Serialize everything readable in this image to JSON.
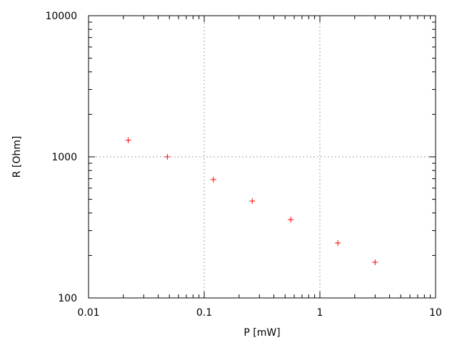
{
  "chart_data": {
    "type": "scatter",
    "title": "",
    "xlabel": "P [mW]",
    "ylabel": "R [Ohm]",
    "xscale": "log",
    "yscale": "log",
    "xlim": [
      0.01,
      10
    ],
    "ylim": [
      100,
      10000
    ],
    "xticks": [
      {
        "value": 0.01,
        "label": "0.01"
      },
      {
        "value": 0.1,
        "label": "0.1"
      },
      {
        "value": 1,
        "label": "1"
      },
      {
        "value": 10,
        "label": "10"
      }
    ],
    "yticks": [
      {
        "value": 100,
        "label": "100"
      },
      {
        "value": 1000,
        "label": "1000"
      },
      {
        "value": 10000,
        "label": "10000"
      }
    ],
    "grid": true,
    "marker": "plus",
    "color": "#ff0000",
    "points": [
      {
        "x": 0.022,
        "y": 1310
      },
      {
        "x": 0.048,
        "y": 1000
      },
      {
        "x": 0.12,
        "y": 690
      },
      {
        "x": 0.26,
        "y": 486
      },
      {
        "x": 0.56,
        "y": 359
      },
      {
        "x": 1.43,
        "y": 245
      },
      {
        "x": 3.0,
        "y": 179
      }
    ]
  }
}
